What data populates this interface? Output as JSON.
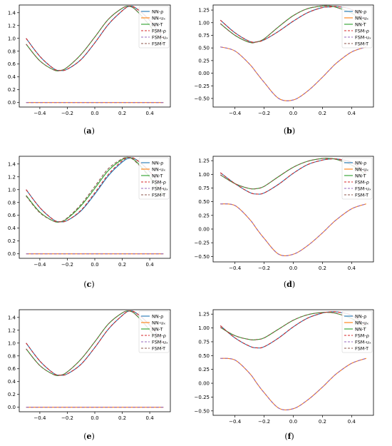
{
  "legend_labels": [
    "NN-ρ",
    "NN-uₓ",
    "NN-T",
    "FSM-ρ",
    "FSM-uₓ",
    "FSM-T"
  ],
  "colors": {
    "NN-rho": "#1f77b4",
    "NN-ux": "#ff7f0e",
    "NN-T": "#2ca02c",
    "FSM-rho": "#d62728",
    "FSM-ux": "#9467bd",
    "FSM-T": "#8c564b"
  },
  "chart_data": [
    {
      "type": "line",
      "caption": "a",
      "legend_position": "top-right",
      "xlim": [
        -0.55,
        0.55
      ],
      "ylim": [
        -0.07,
        1.52
      ],
      "xticks": [
        -0.4,
        -0.2,
        0.0,
        0.2,
        0.4
      ],
      "xtick_labels": [
        "−0.4",
        "−0.2",
        "0.0",
        "0.2",
        "0.4"
      ],
      "yticks": [
        0.0,
        0.2,
        0.4,
        0.6,
        0.8,
        1.0,
        1.2,
        1.4
      ],
      "ytick_labels": [
        "0.0",
        "0.2",
        "0.4",
        "0.6",
        "0.8",
        "1.0",
        "1.2",
        "1.4"
      ],
      "x": [
        -0.5,
        -0.4,
        -0.3,
        -0.25,
        -0.2,
        -0.1,
        0.0,
        0.1,
        0.2,
        0.25,
        0.3,
        0.4,
        0.5
      ],
      "series": [
        {
          "key": "NN-rho",
          "dash": false,
          "values": [
            1.0,
            0.72,
            0.53,
            0.5,
            0.52,
            0.67,
            0.93,
            1.22,
            1.43,
            1.5,
            1.47,
            1.28,
            1.0
          ]
        },
        {
          "key": "NN-ux",
          "dash": false,
          "values": [
            0.0,
            0.0,
            0.0,
            0.0,
            0.0,
            0.0,
            0.0,
            0.0,
            0.0,
            0.0,
            0.0,
            0.0,
            0.0
          ]
        },
        {
          "key": "NN-T",
          "dash": false,
          "values": [
            0.91,
            0.65,
            0.51,
            0.5,
            0.55,
            0.75,
            1.02,
            1.3,
            1.47,
            1.5,
            1.44,
            1.2,
            0.91
          ]
        },
        {
          "key": "FSM-rho",
          "dash": true,
          "values": [
            1.0,
            0.72,
            0.53,
            0.5,
            0.52,
            0.67,
            0.93,
            1.22,
            1.43,
            1.5,
            1.47,
            1.28,
            1.0
          ]
        },
        {
          "key": "FSM-ux",
          "dash": true,
          "values": [
            0.0,
            0.0,
            0.0,
            0.0,
            0.0,
            0.0,
            0.0,
            0.0,
            0.0,
            0.0,
            0.0,
            0.0,
            0.0
          ]
        },
        {
          "key": "FSM-T",
          "dash": true,
          "values": [
            0.91,
            0.65,
            0.51,
            0.5,
            0.55,
            0.75,
            1.02,
            1.3,
            1.47,
            1.5,
            1.44,
            1.2,
            0.91
          ]
        }
      ]
    },
    {
      "type": "line",
      "caption": "b",
      "legend_position": "top-right",
      "xlim": [
        -0.55,
        0.55
      ],
      "ylim": [
        -0.67,
        1.35
      ],
      "xticks": [
        -0.4,
        -0.2,
        0.0,
        0.2,
        0.4
      ],
      "xtick_labels": [
        "−0.4",
        "−0.2",
        "0.0",
        "0.2",
        "0.4"
      ],
      "yticks": [
        -0.5,
        -0.25,
        0.0,
        0.25,
        0.5,
        0.75,
        1.0,
        1.25
      ],
      "ytick_labels": [
        "−0.50",
        "−0.25",
        "0.00",
        "0.25",
        "0.50",
        "0.75",
        "1.00",
        "1.25"
      ],
      "x": [
        -0.5,
        -0.4,
        -0.3,
        -0.25,
        -0.2,
        -0.1,
        0.0,
        0.1,
        0.2,
        0.25,
        0.3,
        0.4,
        0.5
      ],
      "series": [
        {
          "key": "NN-rho",
          "dash": false,
          "values": [
            1.05,
            0.8,
            0.63,
            0.62,
            0.66,
            0.83,
            1.03,
            1.2,
            1.3,
            1.31,
            1.32,
            1.26,
            1.05
          ]
        },
        {
          "key": "NN-ux",
          "dash": false,
          "values": [
            0.52,
            0.44,
            0.18,
            0.0,
            -0.18,
            -0.5,
            -0.53,
            -0.35,
            -0.08,
            0.07,
            0.21,
            0.42,
            0.52
          ]
        },
        {
          "key": "NN-T",
          "dash": false,
          "values": [
            0.98,
            0.75,
            0.61,
            0.62,
            0.68,
            0.92,
            1.14,
            1.28,
            1.33,
            1.33,
            1.3,
            1.19,
            0.98
          ]
        },
        {
          "key": "FSM-rho",
          "dash": true,
          "values": [
            1.05,
            0.8,
            0.63,
            0.62,
            0.66,
            0.83,
            1.03,
            1.2,
            1.3,
            1.31,
            1.32,
            1.26,
            1.05
          ]
        },
        {
          "key": "FSM-ux",
          "dash": true,
          "values": [
            0.52,
            0.44,
            0.18,
            0.0,
            -0.18,
            -0.5,
            -0.53,
            -0.35,
            -0.08,
            0.07,
            0.21,
            0.42,
            0.52
          ]
        },
        {
          "key": "FSM-T",
          "dash": true,
          "values": [
            0.98,
            0.75,
            0.61,
            0.62,
            0.68,
            0.92,
            1.14,
            1.28,
            1.33,
            1.33,
            1.3,
            1.19,
            0.98
          ]
        }
      ]
    },
    {
      "type": "line",
      "caption": "c",
      "legend_position": "top-right",
      "xlim": [
        -0.55,
        0.55
      ],
      "ylim": [
        -0.07,
        1.52
      ],
      "xticks": [
        -0.4,
        -0.2,
        0.0,
        0.2,
        0.4
      ],
      "xtick_labels": [
        "−0.4",
        "−0.2",
        "0.0",
        "0.2",
        "0.4"
      ],
      "yticks": [
        0.0,
        0.2,
        0.4,
        0.6,
        0.8,
        1.0,
        1.2,
        1.4
      ],
      "ytick_labels": [
        "0.0",
        "0.2",
        "0.4",
        "0.6",
        "0.8",
        "1.0",
        "1.2",
        "1.4"
      ],
      "x": [
        -0.5,
        -0.4,
        -0.3,
        -0.25,
        -0.2,
        -0.1,
        0.0,
        0.1,
        0.2,
        0.25,
        0.3,
        0.4,
        0.5
      ],
      "series": [
        {
          "key": "NN-rho",
          "dash": false,
          "values": [
            1.0,
            0.72,
            0.53,
            0.5,
            0.52,
            0.67,
            0.93,
            1.22,
            1.43,
            1.49,
            1.47,
            1.28,
            1.0
          ]
        },
        {
          "key": "NN-ux",
          "dash": false,
          "values": [
            0.0,
            0.0,
            0.0,
            0.0,
            0.0,
            0.0,
            0.0,
            0.0,
            0.0,
            0.0,
            0.0,
            0.0,
            0.0
          ]
        },
        {
          "key": "NN-T",
          "dash": false,
          "values": [
            0.91,
            0.65,
            0.51,
            0.5,
            0.55,
            0.75,
            1.02,
            1.3,
            1.47,
            1.5,
            1.44,
            1.2,
            0.91
          ]
        },
        {
          "key": "FSM-rho",
          "dash": true,
          "values": [
            1.0,
            0.72,
            0.53,
            0.5,
            0.52,
            0.68,
            0.95,
            1.24,
            1.45,
            1.5,
            1.47,
            1.28,
            1.0
          ]
        },
        {
          "key": "FSM-ux",
          "dash": true,
          "values": [
            0.0,
            0.0,
            0.0,
            0.0,
            0.0,
            0.0,
            0.0,
            0.0,
            0.0,
            0.0,
            0.0,
            0.0,
            0.0
          ]
        },
        {
          "key": "FSM-T",
          "dash": true,
          "values": [
            0.9,
            0.64,
            0.51,
            0.5,
            0.56,
            0.77,
            1.05,
            1.33,
            1.48,
            1.5,
            1.43,
            1.19,
            0.9
          ]
        }
      ]
    },
    {
      "type": "line",
      "caption": "d",
      "legend_position": "top-right",
      "xlim": [
        -0.55,
        0.55
      ],
      "ylim": [
        -0.6,
        1.33
      ],
      "xticks": [
        -0.4,
        -0.2,
        0.0,
        0.2,
        0.4
      ],
      "xtick_labels": [
        "−0.4",
        "−0.2",
        "0.0",
        "0.2",
        "0.4"
      ],
      "yticks": [
        -0.5,
        -0.25,
        0.0,
        0.25,
        0.5,
        0.75,
        1.0,
        1.25
      ],
      "ytick_labels": [
        "−0.50",
        "−0.25",
        "0.00",
        "0.25",
        "0.50",
        "0.75",
        "1.00",
        "1.25"
      ],
      "x": [
        -0.5,
        -0.4,
        -0.3,
        -0.25,
        -0.2,
        -0.1,
        0.0,
        0.1,
        0.2,
        0.25,
        0.3,
        0.4,
        0.5
      ],
      "series": [
        {
          "key": "NN-rho",
          "dash": false,
          "values": [
            1.03,
            0.83,
            0.67,
            0.64,
            0.66,
            0.82,
            1.02,
            1.18,
            1.26,
            1.28,
            1.28,
            1.22,
            1.03
          ]
        },
        {
          "key": "NN-ux",
          "dash": false,
          "values": [
            0.46,
            0.43,
            0.18,
            0.0,
            -0.17,
            -0.46,
            -0.46,
            -0.3,
            -0.07,
            0.06,
            0.18,
            0.37,
            0.46
          ]
        },
        {
          "key": "NN-T",
          "dash": false,
          "values": [
            0.99,
            0.83,
            0.74,
            0.74,
            0.78,
            0.96,
            1.13,
            1.24,
            1.29,
            1.29,
            1.27,
            1.17,
            0.99
          ]
        },
        {
          "key": "FSM-rho",
          "dash": true,
          "values": [
            1.03,
            0.83,
            0.67,
            0.64,
            0.66,
            0.82,
            1.02,
            1.18,
            1.26,
            1.28,
            1.28,
            1.22,
            1.03
          ]
        },
        {
          "key": "FSM-ux",
          "dash": true,
          "values": [
            0.46,
            0.43,
            0.18,
            0.0,
            -0.17,
            -0.46,
            -0.46,
            -0.3,
            -0.07,
            0.06,
            0.18,
            0.37,
            0.46
          ]
        },
        {
          "key": "FSM-T",
          "dash": true,
          "values": [
            0.99,
            0.83,
            0.74,
            0.74,
            0.78,
            0.96,
            1.13,
            1.24,
            1.29,
            1.29,
            1.27,
            1.17,
            0.99
          ]
        }
      ]
    },
    {
      "type": "line",
      "caption": "e",
      "legend_position": "top-right",
      "xlim": [
        -0.55,
        0.55
      ],
      "ylim": [
        -0.07,
        1.52
      ],
      "xticks": [
        -0.4,
        -0.2,
        0.0,
        0.2,
        0.4
      ],
      "xtick_labels": [
        "−0.4",
        "−0.2",
        "0.0",
        "0.2",
        "0.4"
      ],
      "yticks": [
        0.0,
        0.2,
        0.4,
        0.6,
        0.8,
        1.0,
        1.2,
        1.4
      ],
      "ytick_labels": [
        "0.0",
        "0.2",
        "0.4",
        "0.6",
        "0.8",
        "1.0",
        "1.2",
        "1.4"
      ],
      "x": [
        -0.5,
        -0.4,
        -0.3,
        -0.25,
        -0.2,
        -0.1,
        0.0,
        0.1,
        0.2,
        0.25,
        0.3,
        0.4,
        0.5
      ],
      "series": [
        {
          "key": "NN-rho",
          "dash": false,
          "values": [
            1.0,
            0.72,
            0.53,
            0.5,
            0.52,
            0.67,
            0.93,
            1.22,
            1.43,
            1.5,
            1.47,
            1.28,
            1.0
          ]
        },
        {
          "key": "NN-ux",
          "dash": false,
          "values": [
            0.0,
            0.0,
            0.0,
            0.0,
            0.0,
            0.0,
            0.0,
            0.0,
            0.0,
            0.0,
            0.0,
            0.0,
            0.0
          ]
        },
        {
          "key": "NN-T",
          "dash": false,
          "values": [
            0.91,
            0.65,
            0.51,
            0.5,
            0.55,
            0.75,
            1.02,
            1.3,
            1.47,
            1.5,
            1.44,
            1.2,
            0.91
          ]
        },
        {
          "key": "FSM-rho",
          "dash": true,
          "values": [
            1.0,
            0.72,
            0.53,
            0.5,
            0.52,
            0.67,
            0.93,
            1.22,
            1.43,
            1.5,
            1.47,
            1.28,
            1.0
          ]
        },
        {
          "key": "FSM-ux",
          "dash": true,
          "values": [
            0.0,
            0.0,
            0.0,
            0.0,
            0.0,
            0.0,
            0.0,
            0.0,
            0.0,
            0.0,
            0.0,
            0.0,
            0.0
          ]
        },
        {
          "key": "FSM-T",
          "dash": true,
          "values": [
            0.91,
            0.65,
            0.51,
            0.5,
            0.55,
            0.75,
            1.02,
            1.3,
            1.47,
            1.5,
            1.44,
            1.2,
            0.91
          ]
        }
      ]
    },
    {
      "type": "line",
      "caption": "f",
      "legend_position": "top-right",
      "xlim": [
        -0.55,
        0.55
      ],
      "ylim": [
        -0.58,
        1.33
      ],
      "xticks": [
        -0.4,
        -0.2,
        0.0,
        0.2,
        0.4
      ],
      "xtick_labels": [
        "−0.4",
        "−0.2",
        "0.0",
        "0.2",
        "0.4"
      ],
      "yticks": [
        -0.5,
        -0.25,
        0.0,
        0.25,
        0.5,
        0.75,
        1.0,
        1.25
      ],
      "ytick_labels": [
        "−0.50",
        "−0.25",
        "0.00",
        "0.25",
        "0.50",
        "0.75",
        "1.00",
        "1.25"
      ],
      "x": [
        -0.5,
        -0.4,
        -0.3,
        -0.25,
        -0.2,
        -0.1,
        0.0,
        0.1,
        0.2,
        0.25,
        0.3,
        0.4,
        0.5
      ],
      "series": [
        {
          "key": "NN-rho",
          "dash": false,
          "values": [
            1.04,
            0.82,
            0.67,
            0.64,
            0.66,
            0.82,
            1.02,
            1.18,
            1.27,
            1.29,
            1.29,
            1.23,
            1.04
          ]
        },
        {
          "key": "NN-ux",
          "dash": false,
          "values": [
            0.45,
            0.42,
            0.18,
            0.0,
            -0.17,
            -0.45,
            -0.46,
            -0.3,
            -0.07,
            0.06,
            0.18,
            0.36,
            0.45
          ]
        },
        {
          "key": "NN-T",
          "dash": false,
          "values": [
            1.01,
            0.86,
            0.79,
            0.79,
            0.82,
            0.98,
            1.14,
            1.24,
            1.28,
            1.28,
            1.26,
            1.17,
            1.01
          ]
        },
        {
          "key": "FSM-rho",
          "dash": true,
          "values": [
            1.04,
            0.82,
            0.67,
            0.64,
            0.66,
            0.82,
            1.02,
            1.18,
            1.27,
            1.29,
            1.29,
            1.23,
            1.04
          ]
        },
        {
          "key": "FSM-ux",
          "dash": true,
          "values": [
            0.45,
            0.42,
            0.18,
            0.0,
            -0.17,
            -0.45,
            -0.46,
            -0.3,
            -0.07,
            0.06,
            0.18,
            0.36,
            0.45
          ]
        },
        {
          "key": "FSM-T",
          "dash": true,
          "values": [
            1.01,
            0.86,
            0.79,
            0.79,
            0.82,
            0.98,
            1.14,
            1.24,
            1.28,
            1.28,
            1.26,
            1.17,
            1.01
          ]
        }
      ]
    }
  ]
}
